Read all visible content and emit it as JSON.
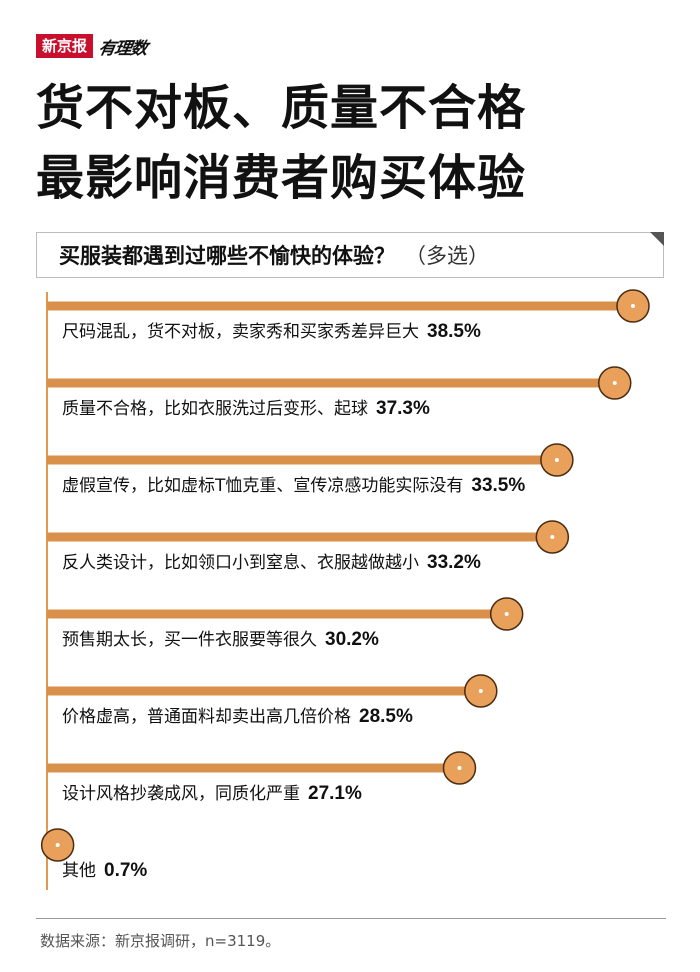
{
  "brand": {
    "name": "新京报",
    "column": "有理数"
  },
  "title": {
    "line1": "货不对板、质量不合格",
    "line2": "最影响消费者购买体验"
  },
  "question": {
    "text": "买服装都遇到过哪些不愉快的体验？",
    "note": "（多选）"
  },
  "colors": {
    "bar": "#d8904a",
    "marker_fill": "#e8a05a",
    "marker_stroke": "#4a2c12",
    "axis": "#e09a4e"
  },
  "chart_data": {
    "type": "bar",
    "orientation": "horizontal",
    "unit": "%",
    "categories": [
      "尺码混乱，货不对板，卖家秀和买家秀差异巨大",
      "质量不合格，比如衣服洗过后变形、起球",
      "虚假宣传，比如虚标T恤克重、宣传凉感功能实际没有",
      "反人类设计，比如领口小到窒息、衣服越做越小",
      "预售期太长，买一件衣服要等很久",
      "价格虚高，普通面料却卖出高几倍价格",
      "设计风格抄袭成风，同质化严重",
      "其他"
    ],
    "values": [
      38.5,
      37.3,
      33.5,
      33.2,
      30.2,
      28.5,
      27.1,
      0.7
    ],
    "value_labels": [
      "38.5%",
      "37.3%",
      "33.5%",
      "33.2%",
      "30.2%",
      "28.5%",
      "27.1%",
      "0.7%"
    ],
    "xlim": [
      0,
      38.5
    ]
  },
  "footer": {
    "source": "数据来源：新京报调研，n=3119。"
  }
}
